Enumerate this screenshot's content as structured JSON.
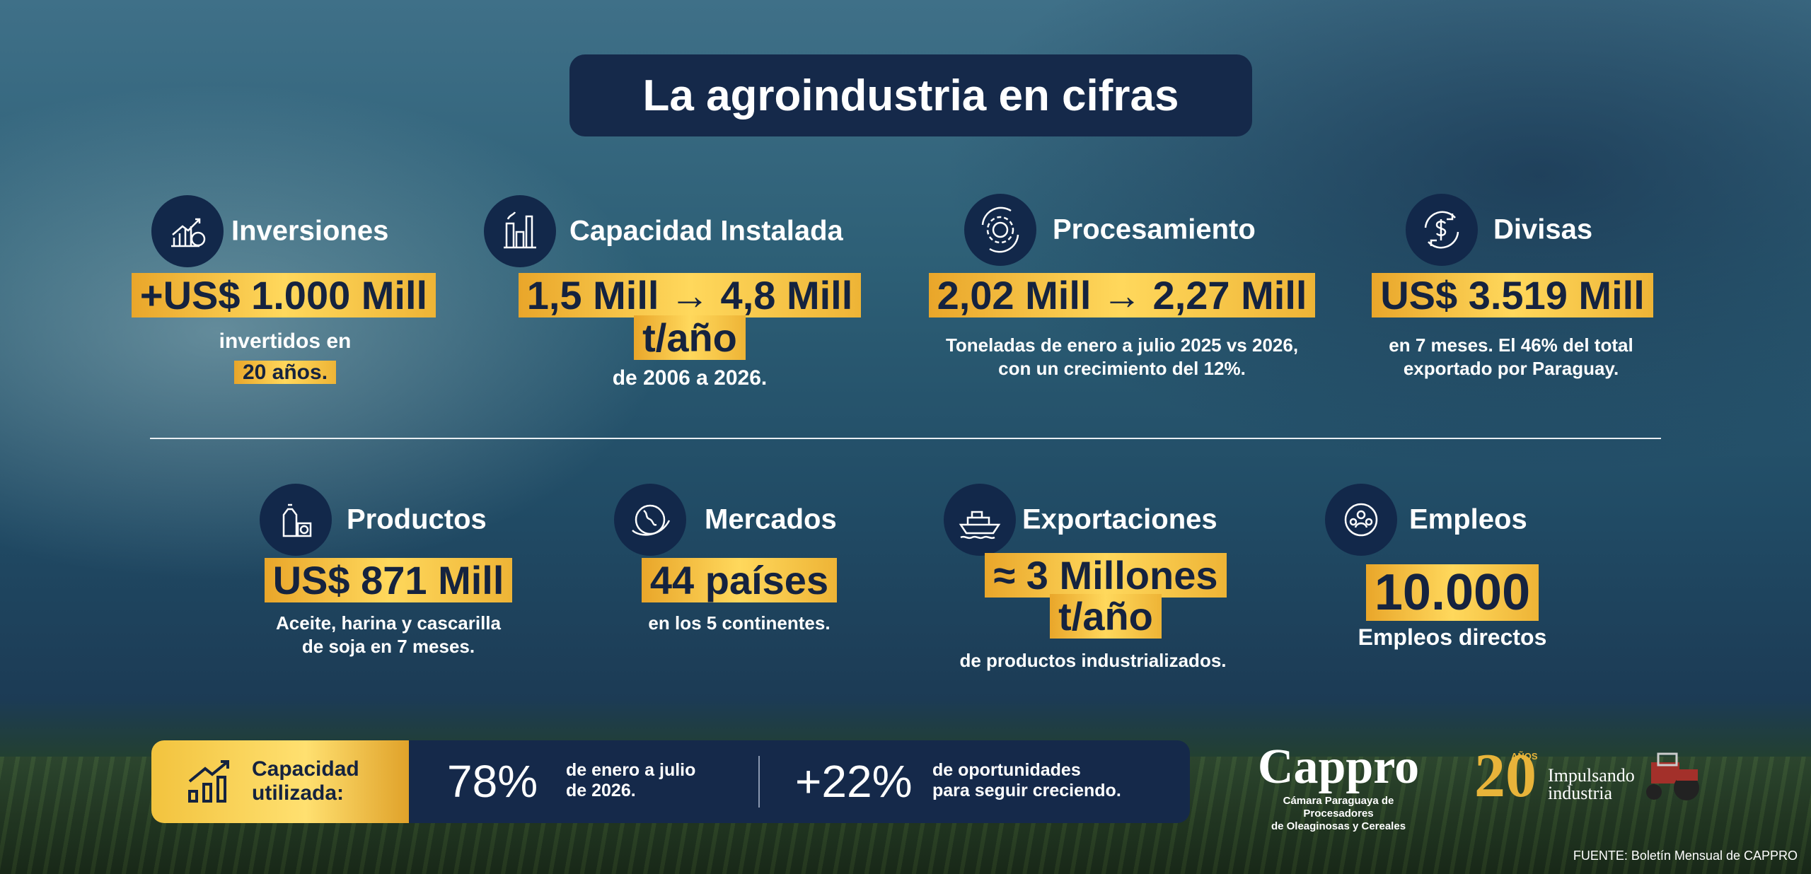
{
  "title": "La agroindustria en cifras",
  "top_stats": [
    {
      "heading": "Inversiones",
      "value": [
        "+US$ 1.000 Mill"
      ],
      "description": [
        "invertidos en",
        "20 años."
      ]
    },
    {
      "heading": "Capacidad Instalada",
      "value": [
        "1,5 Mill → 4,8 Mill",
        "t/año"
      ],
      "description": [
        "de 2006 a 2026."
      ]
    },
    {
      "heading": "Procesamiento",
      "value": [
        "2,02 Mill → 2,27 Mill"
      ],
      "description": [
        "Toneladas de enero a julio 2025 vs 2026,",
        "con un crecimiento del 12%."
      ]
    },
    {
      "heading": "Divisas",
      "value": [
        "US$ 3.519 Mill"
      ],
      "description": [
        "en 7 meses. El 46% del total",
        "exportado por Paraguay."
      ]
    }
  ],
  "bottom_stats": [
    {
      "heading": "Productos",
      "value": [
        "US$ 871 Mill"
      ],
      "description": [
        "Aceite, harina y cascarilla",
        "de soja en 7 meses."
      ]
    },
    {
      "heading": "Mercados",
      "value": [
        "44 países"
      ],
      "description": [
        "en los 5 continentes."
      ]
    },
    {
      "heading": "Exportaciones",
      "value": [
        "≈ 3 Millones",
        "t/año"
      ],
      "description": [
        "de productos industrializados."
      ]
    },
    {
      "heading": "Empleos",
      "value": [
        "10.000"
      ],
      "description": [
        "Empleos directos"
      ]
    }
  ],
  "utilization": {
    "label": [
      "Capacidad",
      "utilizada:"
    ],
    "items": [
      {
        "figure": "78%",
        "text": [
          "de enero a julio",
          "de 2026."
        ]
      },
      {
        "figure": "+22%",
        "text": [
          "de oportunidades",
          "para seguir creciendo."
        ]
      }
    ]
  },
  "logo": {
    "name": "Cappro",
    "subtitle": [
      "Cámara Paraguaya de Procesadores",
      "de Oleaginosas y Cereales"
    ]
  },
  "anniversary": {
    "number": "20",
    "label": "AÑOS",
    "tagline": [
      "Impulsando",
      "industria"
    ]
  },
  "source": "FUENTE: Boletín Mensual de CAPPRO"
}
